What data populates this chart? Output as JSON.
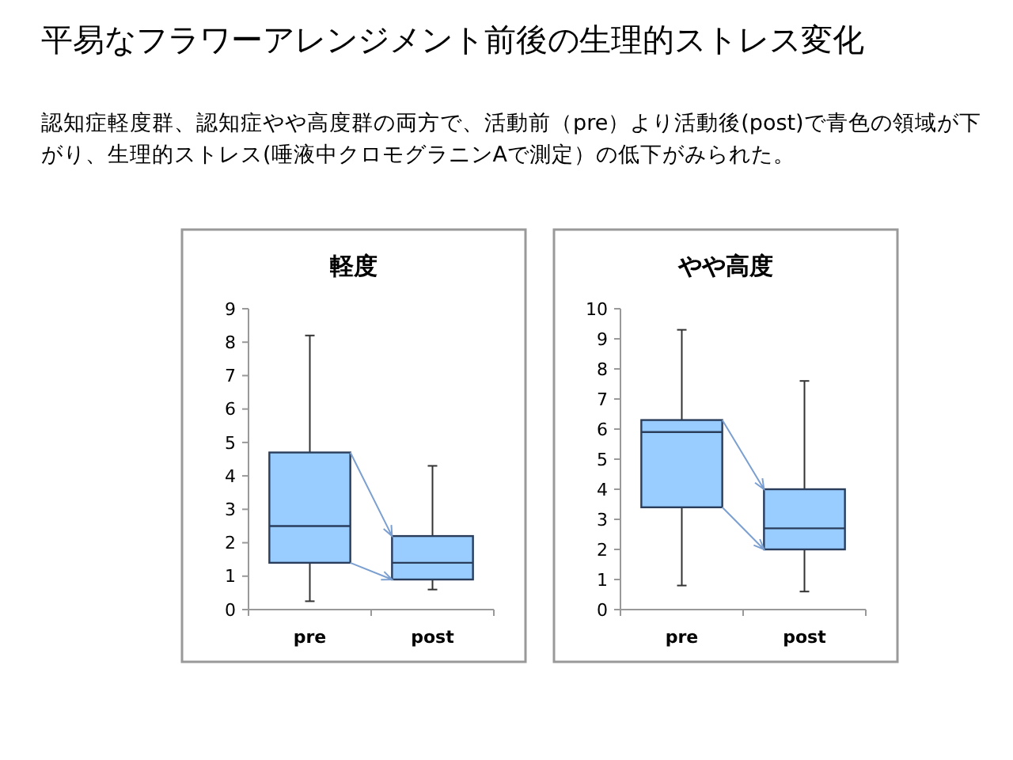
{
  "chart_data": [
    {
      "type": "other",
      "title": "平易なフラワーアレンジメント前後の生理的ストレス変化",
      "subtitle": "認知症軽度群、認知症やや高度群の両方で、活動前（pre）より活動後(post)で青色の領域が下がり、生理的ストレス(唾液中クロモグラニンAで測定）の低下がみられた。"
    },
    {
      "type": "box",
      "title": "軽度",
      "categories": [
        "pre",
        "post"
      ],
      "ylim": [
        0,
        9
      ],
      "yticks": [
        0,
        1,
        2,
        3,
        4,
        5,
        6,
        7,
        8,
        9
      ],
      "series": [
        {
          "color": "#99ccff",
          "boxes": [
            {
              "low": 0.25,
              "q1": 1.4,
              "median": 2.5,
              "q3": 4.7,
              "high": 8.2
            },
            {
              "low": 0.6,
              "q1": 0.9,
              "median": 1.4,
              "q3": 2.2,
              "high": 4.3
            }
          ]
        }
      ]
    },
    {
      "type": "box",
      "title": "やや高度",
      "categories": [
        "pre",
        "post"
      ],
      "ylim": [
        0,
        10
      ],
      "yticks": [
        0,
        1,
        2,
        3,
        4,
        5,
        6,
        7,
        8,
        9,
        10
      ],
      "series": [
        {
          "color": "#99ccff",
          "boxes": [
            {
              "low": 0.8,
              "q1": 3.4,
              "median": 5.9,
              "q3": 6.3,
              "high": 9.3
            },
            {
              "low": 0.6,
              "q1": 2.0,
              "median": 2.7,
              "q3": 4.0,
              "high": 7.6
            }
          ]
        }
      ]
    }
  ]
}
